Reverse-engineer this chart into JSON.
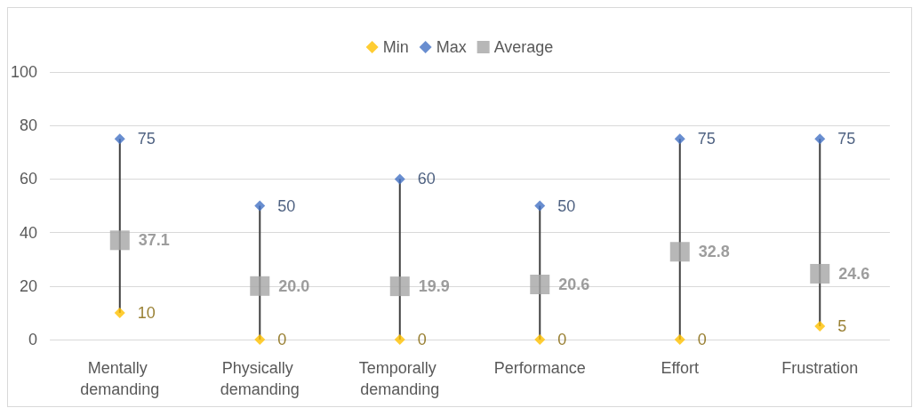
{
  "chart_data": {
    "type": "scatter",
    "categories": [
      "Mentally demanding",
      "Physically demanding",
      "Temporally demanding",
      "Performance",
      "Effort",
      "Frustration"
    ],
    "series": [
      {
        "name": "Min",
        "color": "#ffc000",
        "marker": "diamond",
        "values": [
          10,
          0,
          0,
          0,
          0,
          5
        ]
      },
      {
        "name": "Max",
        "color": "#4472c4",
        "marker": "diamond",
        "values": [
          75,
          50,
          60,
          50,
          75,
          75
        ]
      },
      {
        "name": "Average",
        "color": "#a5a5a5",
        "marker": "square",
        "values": [
          37.1,
          20.0,
          19.9,
          20.6,
          32.8,
          24.6
        ],
        "value_labels": [
          "37.1",
          "20.0",
          "19.9",
          "20.6",
          "32.8",
          "24.6"
        ]
      }
    ],
    "ylim": [
      0,
      100
    ],
    "yticks": [
      0,
      20,
      40,
      60,
      80,
      100
    ],
    "grid": "y",
    "legend": "top",
    "data_labels": true
  }
}
